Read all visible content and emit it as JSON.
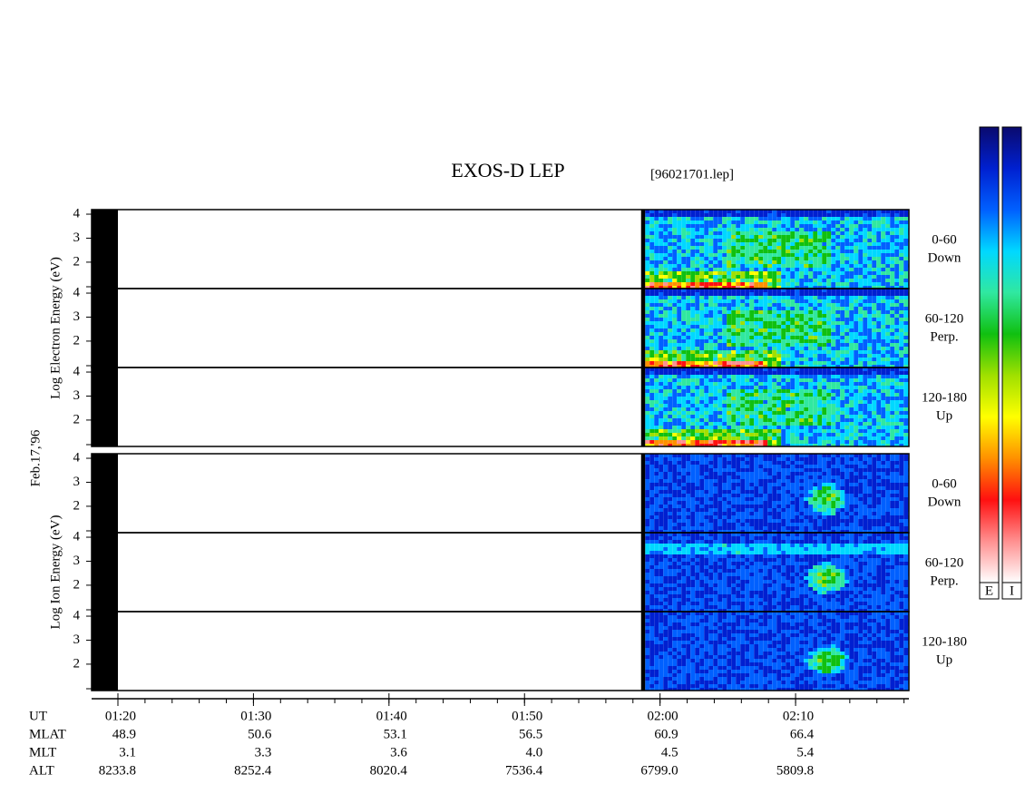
{
  "chart_data": {
    "type": "spectrogram",
    "title": "EXOS-D LEP",
    "subtitle": "[96021701.lep]",
    "date_label": "Feb.17,'96",
    "xlim": [
      18.06,
      78.36
    ],
    "xticks": [
      {
        "value": 20,
        "label": "01:20"
      },
      {
        "value": 30,
        "label": "01:30"
      },
      {
        "value": 40,
        "label": "01:40"
      },
      {
        "value": 50,
        "label": "01:50"
      },
      {
        "value": 60,
        "label": "02:00"
      },
      {
        "value": 70,
        "label": "02:10"
      }
    ],
    "ylim": [
      0.9,
      4.19
    ],
    "yticks": [
      2,
      3,
      4
    ],
    "data_range": [
      58.9,
      78.36
    ],
    "no_data": [
      [
        18.06,
        20.0
      ],
      [
        58.6,
        58.9
      ]
    ],
    "groups": [
      {
        "label": "Log Electron Energy (eV)",
        "panels": [
          {
            "angle": "0-60",
            "direction": "Down"
          },
          {
            "angle": "60-120",
            "direction": "Perp."
          },
          {
            "angle": "120-180",
            "direction": "Up"
          }
        ]
      },
      {
        "label": "Log Ion Energy (eV)",
        "panels": [
          {
            "angle": "0-60",
            "direction": "Down"
          },
          {
            "angle": "60-120",
            "direction": "Perp."
          },
          {
            "angle": "120-180",
            "direction": "Up"
          }
        ]
      }
    ],
    "ephemeris": {
      "x_label": "UT",
      "rows": [
        {
          "name": "MLAT",
          "values": [
            "48.9",
            "50.6",
            "53.1",
            "56.5",
            "60.9",
            "66.4"
          ]
        },
        {
          "name": "MLT",
          "values": [
            "3.1",
            "3.3",
            "3.6",
            "4.0",
            "4.5",
            "5.4"
          ]
        },
        {
          "name": "ALT",
          "values": [
            "8233.8",
            "8252.4",
            "8020.4",
            "7536.4",
            "6799.0",
            "5809.8"
          ]
        }
      ]
    },
    "colorscale": [
      "#0a0a6e",
      "#0020d0",
      "#0060ff",
      "#00d8ff",
      "#30e8a0",
      "#10c010",
      "#a0e000",
      "#ffff00",
      "#ff9000",
      "#ff1010",
      "#ff9090",
      "#ffffff"
    ],
    "colorbars": [
      "E",
      "I"
    ]
  }
}
